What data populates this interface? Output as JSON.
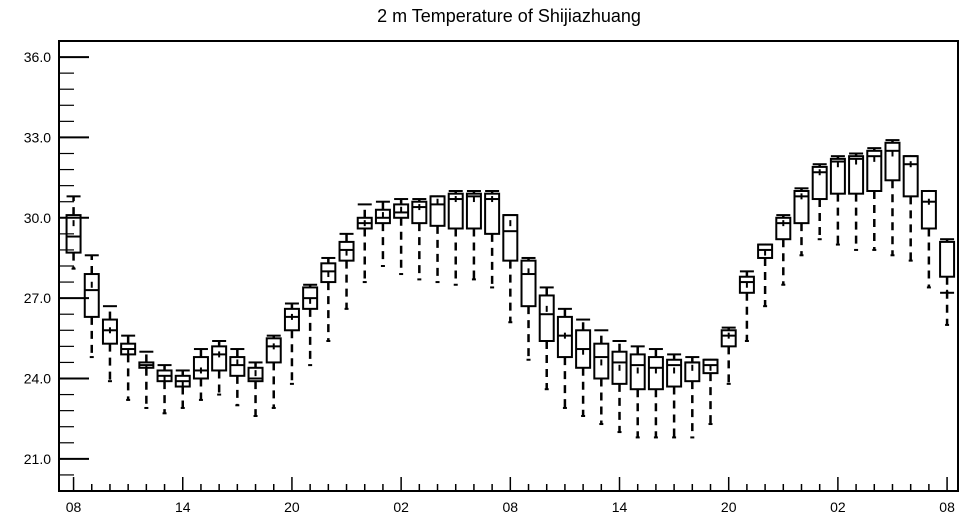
{
  "chart_data": {
    "type": "box",
    "title": "2 m Temperature of Shijiazhuang",
    "xlabel": "",
    "ylabel": "",
    "ylim": [
      19.8,
      36.6
    ],
    "yticks": [
      21.0,
      24.0,
      27.0,
      30.0,
      33.0,
      36.0
    ],
    "ytick_labels": [
      "21.0",
      "24.0",
      "27.0",
      "30.0",
      "33.0",
      "36.0"
    ],
    "x_range": [
      -0.8,
      48.6
    ],
    "xticks": [
      0,
      6,
      12,
      18,
      24,
      30,
      36,
      42,
      48
    ],
    "xtick_labels": [
      "08",
      "14",
      "20",
      "02",
      "08",
      "14",
      "20",
      "02",
      "08"
    ],
    "grid": false,
    "series": [
      {
        "x": [
          0,
          1,
          2,
          3,
          4,
          5,
          6,
          7,
          8,
          9,
          10,
          11,
          12,
          13,
          14,
          15,
          16,
          17,
          18,
          19,
          20,
          21,
          22,
          23,
          24,
          25,
          26,
          27,
          28,
          29,
          30,
          31,
          32,
          33,
          34,
          35,
          36,
          37,
          38,
          39,
          40,
          41,
          42,
          43,
          44,
          45,
          46,
          47,
          48
        ],
        "min": [
          28.1,
          24.8,
          23.9,
          23.2,
          22.9,
          22.7,
          22.9,
          23.2,
          23.4,
          23.0,
          22.6,
          22.9,
          23.8,
          24.5,
          25.4,
          26.6,
          27.6,
          28.2,
          27.9,
          27.7,
          27.6,
          27.5,
          27.7,
          27.4,
          26.1,
          24.7,
          23.6,
          22.9,
          22.6,
          22.3,
          22.0,
          21.8,
          21.8,
          21.8,
          21.8,
          22.3,
          23.8,
          25.4,
          26.7,
          27.5,
          28.6,
          29.2,
          29.0,
          28.8,
          28.8,
          28.6,
          28.4,
          27.4,
          26.0
        ],
        "q1": [
          28.7,
          26.3,
          25.3,
          24.9,
          24.4,
          23.9,
          23.7,
          24.0,
          24.3,
          24.1,
          23.9,
          24.6,
          25.8,
          26.6,
          27.6,
          28.4,
          29.6,
          29.8,
          30.0,
          29.8,
          29.7,
          29.6,
          29.6,
          29.4,
          28.4,
          26.7,
          25.4,
          24.8,
          24.4,
          24.0,
          23.8,
          23.6,
          23.6,
          23.7,
          23.9,
          24.2,
          25.2,
          27.2,
          28.5,
          29.2,
          29.8,
          30.7,
          30.9,
          30.9,
          31.0,
          31.4,
          30.8,
          29.6,
          27.8
        ],
        "median": [
          29.3,
          27.3,
          25.8,
          25.1,
          24.5,
          24.1,
          23.9,
          24.3,
          24.9,
          24.5,
          24.0,
          25.2,
          26.3,
          27.0,
          28.0,
          28.8,
          29.8,
          30.0,
          30.2,
          30.4,
          30.5,
          30.7,
          30.8,
          30.7,
          29.5,
          27.9,
          26.4,
          25.6,
          25.1,
          24.8,
          24.6,
          24.5,
          24.4,
          24.5,
          24.6,
          24.5,
          25.6,
          27.6,
          28.8,
          29.8,
          30.8,
          31.7,
          32.1,
          32.2,
          32.3,
          32.5,
          32.0,
          30.6,
          27.2
        ],
        "q3": [
          30.1,
          27.9,
          26.2,
          25.3,
          24.6,
          24.3,
          24.1,
          24.8,
          25.2,
          24.8,
          24.4,
          25.5,
          26.6,
          27.4,
          28.3,
          29.1,
          30.0,
          30.3,
          30.5,
          30.6,
          30.8,
          30.9,
          30.9,
          30.9,
          30.1,
          28.4,
          27.1,
          26.3,
          25.8,
          25.3,
          25.0,
          24.9,
          24.8,
          24.7,
          24.6,
          24.7,
          25.8,
          27.8,
          29.0,
          30.0,
          31.0,
          31.9,
          32.2,
          32.3,
          32.5,
          32.8,
          32.3,
          31.0,
          29.1
        ],
        "max": [
          30.8,
          28.6,
          26.7,
          25.6,
          25.0,
          24.5,
          24.3,
          25.1,
          25.4,
          25.1,
          24.6,
          25.6,
          26.8,
          27.5,
          28.5,
          29.4,
          30.5,
          30.6,
          30.7,
          30.7,
          30.8,
          31.0,
          31.0,
          31.0,
          30.1,
          28.5,
          27.4,
          26.6,
          26.2,
          25.8,
          25.4,
          25.2,
          25.1,
          24.9,
          24.8,
          24.7,
          25.9,
          28.0,
          29.0,
          30.1,
          31.1,
          32.0,
          32.3,
          32.4,
          32.6,
          32.9,
          32.3,
          31.0,
          29.2
        ],
        "mean": [
          29.8,
          27.5,
          25.8,
          25.0,
          24.4,
          24.0,
          23.8,
          24.3,
          24.9,
          24.6,
          24.2,
          25.2,
          26.3,
          26.9,
          27.9,
          28.7,
          29.8,
          30.1,
          30.3,
          30.4,
          30.6,
          30.7,
          30.7,
          30.7,
          29.8,
          28.0,
          26.6,
          25.6,
          25.0,
          24.6,
          24.4,
          24.3,
          24.3,
          24.3,
          24.4,
          24.4,
          25.6,
          27.5,
          28.7,
          29.8,
          30.8,
          31.7,
          32.0,
          32.1,
          32.2,
          32.4,
          32.0,
          30.6,
          27.2
        ]
      }
    ]
  }
}
